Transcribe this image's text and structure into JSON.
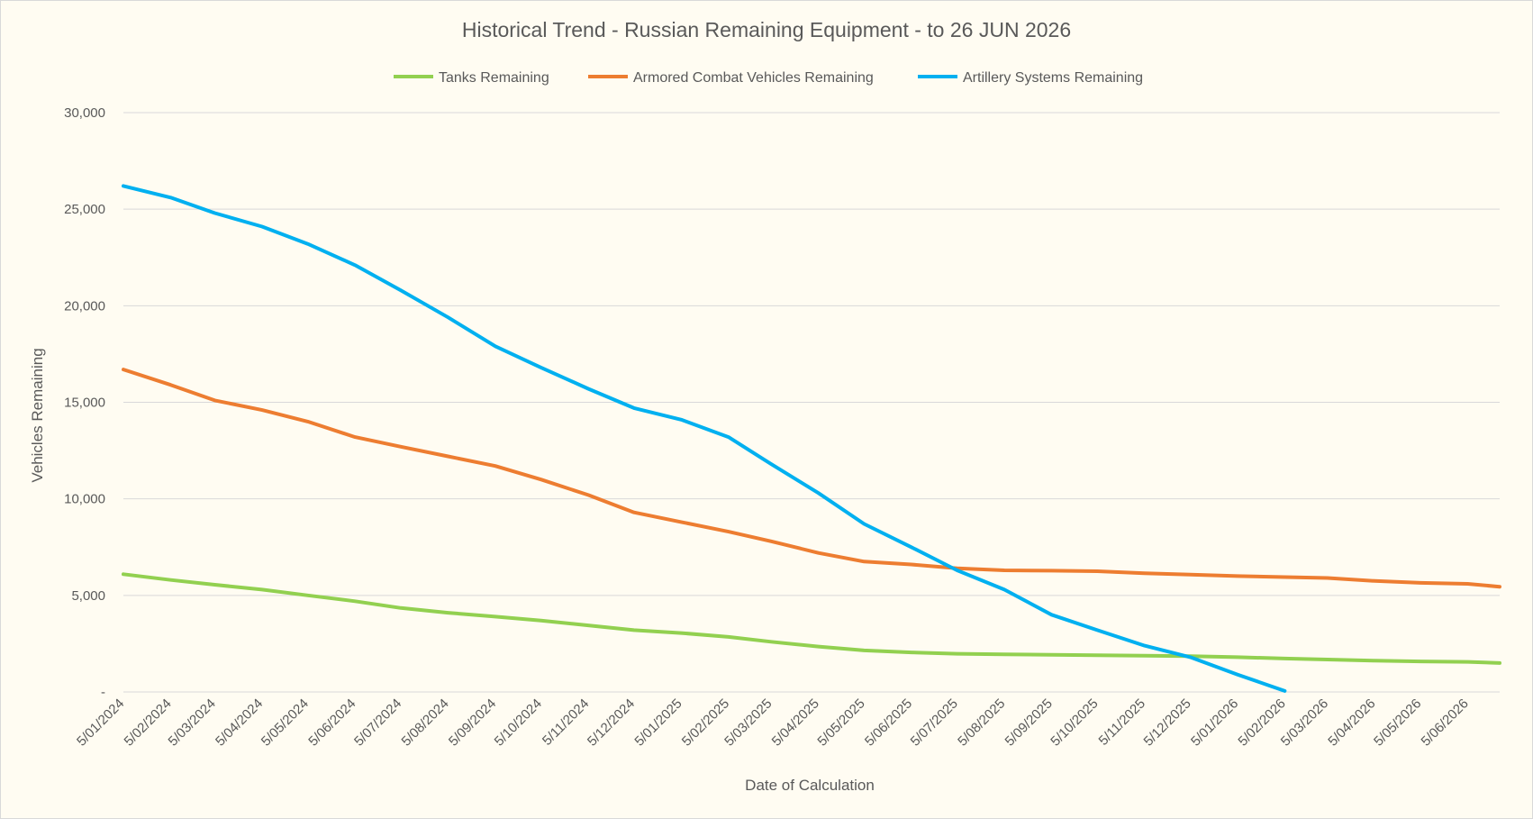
{
  "chart_data": {
    "type": "line",
    "title": "Historical Trend - Russian Remaining Equipment - to 26 JUN 2026",
    "xlabel": "Date of Calculation",
    "ylabel": "Vehicles Remaining",
    "ylim": [
      0,
      30000
    ],
    "yticks": [
      0,
      5000,
      10000,
      15000,
      20000,
      25000,
      30000
    ],
    "ytick_labels": [
      "-",
      "5,000",
      "10,000",
      "15,000",
      "20,000",
      "25,000",
      "30,000"
    ],
    "xlim": [
      "2024-01-05",
      "2026-06-26"
    ],
    "xtick_labels": [
      "5/01/2024",
      "5/02/2024",
      "5/03/2024",
      "5/04/2024",
      "5/05/2024",
      "5/06/2024",
      "5/07/2024",
      "5/08/2024",
      "5/09/2024",
      "5/10/2024",
      "5/11/2024",
      "5/12/2024",
      "5/01/2025",
      "5/02/2025",
      "5/03/2025",
      "5/04/2025",
      "5/05/2025",
      "5/06/2025",
      "5/07/2025",
      "5/08/2025",
      "5/09/2025",
      "5/10/2025",
      "5/11/2025",
      "5/12/2025",
      "5/01/2026",
      "5/02/2026",
      "5/03/2026",
      "5/04/2026",
      "5/05/2026",
      "5/06/2026"
    ],
    "grid": true,
    "legend_position": "top",
    "series": [
      {
        "name": "Tanks Remaining",
        "color": "#92d050",
        "points": [
          [
            "2024-01-05",
            6100
          ],
          [
            "2024-02-05",
            5800
          ],
          [
            "2024-03-05",
            5550
          ],
          [
            "2024-04-05",
            5300
          ],
          [
            "2024-05-05",
            5000
          ],
          [
            "2024-06-05",
            4700
          ],
          [
            "2024-07-05",
            4350
          ],
          [
            "2024-08-05",
            4100
          ],
          [
            "2024-09-05",
            3900
          ],
          [
            "2024-10-05",
            3700
          ],
          [
            "2024-11-05",
            3450
          ],
          [
            "2024-12-05",
            3200
          ],
          [
            "2025-01-05",
            3050
          ],
          [
            "2025-02-05",
            2850
          ],
          [
            "2025-03-05",
            2600
          ],
          [
            "2025-04-05",
            2350
          ],
          [
            "2025-05-05",
            2150
          ],
          [
            "2025-06-05",
            2050
          ],
          [
            "2025-07-05",
            1980
          ],
          [
            "2025-08-05",
            1950
          ],
          [
            "2025-09-05",
            1920
          ],
          [
            "2025-10-05",
            1900
          ],
          [
            "2025-11-05",
            1880
          ],
          [
            "2025-12-05",
            1850
          ],
          [
            "2026-01-05",
            1800
          ],
          [
            "2026-02-05",
            1730
          ],
          [
            "2026-03-05",
            1680
          ],
          [
            "2026-04-05",
            1620
          ],
          [
            "2026-05-05",
            1580
          ],
          [
            "2026-06-05",
            1560
          ],
          [
            "2026-06-26",
            1500
          ]
        ]
      },
      {
        "name": "Armored Combat Vehicles Remaining",
        "color": "#ed7d31",
        "points": [
          [
            "2024-01-05",
            16700
          ],
          [
            "2024-02-05",
            15900
          ],
          [
            "2024-03-05",
            15100
          ],
          [
            "2024-04-05",
            14600
          ],
          [
            "2024-05-05",
            14000
          ],
          [
            "2024-06-05",
            13200
          ],
          [
            "2024-07-05",
            12700
          ],
          [
            "2024-08-05",
            12200
          ],
          [
            "2024-09-05",
            11700
          ],
          [
            "2024-10-05",
            11000
          ],
          [
            "2024-11-05",
            10200
          ],
          [
            "2024-12-05",
            9300
          ],
          [
            "2025-01-05",
            8800
          ],
          [
            "2025-02-05",
            8300
          ],
          [
            "2025-03-05",
            7800
          ],
          [
            "2025-04-05",
            7200
          ],
          [
            "2025-05-05",
            6750
          ],
          [
            "2025-06-05",
            6600
          ],
          [
            "2025-07-05",
            6400
          ],
          [
            "2025-08-05",
            6300
          ],
          [
            "2025-09-05",
            6280
          ],
          [
            "2025-10-05",
            6250
          ],
          [
            "2025-11-05",
            6150
          ],
          [
            "2025-12-05",
            6080
          ],
          [
            "2026-01-05",
            6000
          ],
          [
            "2026-02-05",
            5950
          ],
          [
            "2026-03-05",
            5900
          ],
          [
            "2026-04-05",
            5750
          ],
          [
            "2026-05-05",
            5650
          ],
          [
            "2026-06-05",
            5600
          ],
          [
            "2026-06-26",
            5450
          ]
        ]
      },
      {
        "name": "Artillery Systems Remaining",
        "color": "#00b0f0",
        "points": [
          [
            "2024-01-05",
            26200
          ],
          [
            "2024-02-05",
            25600
          ],
          [
            "2024-03-05",
            24800
          ],
          [
            "2024-04-05",
            24100
          ],
          [
            "2024-05-05",
            23200
          ],
          [
            "2024-06-05",
            22100
          ],
          [
            "2024-07-05",
            20800
          ],
          [
            "2024-08-05",
            19400
          ],
          [
            "2024-09-05",
            17900
          ],
          [
            "2024-10-05",
            16800
          ],
          [
            "2024-11-05",
            15700
          ],
          [
            "2024-12-05",
            14700
          ],
          [
            "2025-01-05",
            14100
          ],
          [
            "2025-02-05",
            13200
          ],
          [
            "2025-03-05",
            11800
          ],
          [
            "2025-04-05",
            10300
          ],
          [
            "2025-05-05",
            8700
          ],
          [
            "2025-06-05",
            7500
          ],
          [
            "2025-07-05",
            6300
          ],
          [
            "2025-08-05",
            5300
          ],
          [
            "2025-09-05",
            4000
          ],
          [
            "2025-10-05",
            3200
          ],
          [
            "2025-11-05",
            2400
          ],
          [
            "2025-12-05",
            1800
          ],
          [
            "2026-01-05",
            900
          ],
          [
            "2026-02-05",
            50
          ]
        ]
      }
    ]
  }
}
